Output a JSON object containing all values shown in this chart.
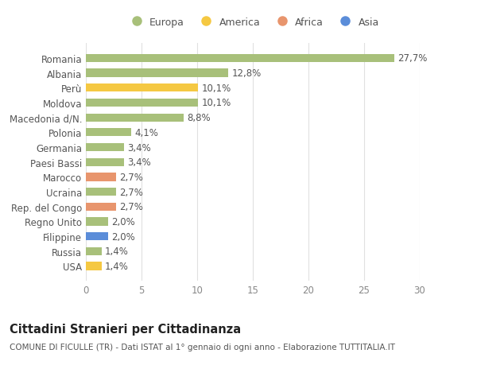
{
  "countries": [
    "Romania",
    "Albania",
    "Perù",
    "Moldova",
    "Macedonia d/N.",
    "Polonia",
    "Germania",
    "Paesi Bassi",
    "Marocco",
    "Ucraina",
    "Rep. del Congo",
    "Regno Unito",
    "Filippine",
    "Russia",
    "USA"
  ],
  "values": [
    27.7,
    12.8,
    10.1,
    10.1,
    8.8,
    4.1,
    3.4,
    3.4,
    2.7,
    2.7,
    2.7,
    2.0,
    2.0,
    1.4,
    1.4
  ],
  "labels": [
    "27,7%",
    "12,8%",
    "10,1%",
    "10,1%",
    "8,8%",
    "4,1%",
    "3,4%",
    "3,4%",
    "2,7%",
    "2,7%",
    "2,7%",
    "2,0%",
    "2,0%",
    "1,4%",
    "1,4%"
  ],
  "continents": [
    "Europa",
    "Europa",
    "America",
    "Europa",
    "Europa",
    "Europa",
    "Europa",
    "Europa",
    "Africa",
    "Europa",
    "Africa",
    "Europa",
    "Asia",
    "Europa",
    "America"
  ],
  "colors": {
    "Europa": "#a8c07a",
    "America": "#f5c842",
    "Africa": "#e8956d",
    "Asia": "#5b8dd9"
  },
  "legend_order": [
    "Europa",
    "America",
    "Africa",
    "Asia"
  ],
  "legend_colors": [
    "#a8c07a",
    "#f5c842",
    "#e8956d",
    "#5b8dd9"
  ],
  "title": "Cittadini Stranieri per Cittadinanza",
  "subtitle": "COMUNE DI FICULLE (TR) - Dati ISTAT al 1° gennaio di ogni anno - Elaborazione TUTTITALIA.IT",
  "xlim": [
    0,
    30
  ],
  "xticks": [
    0,
    5,
    10,
    15,
    20,
    25,
    30
  ],
  "background_color": "#ffffff",
  "grid_color": "#e0e0e0",
  "bar_height": 0.55,
  "label_fontsize": 8.5,
  "tick_fontsize": 8.5,
  "title_fontsize": 10.5,
  "subtitle_fontsize": 7.5
}
